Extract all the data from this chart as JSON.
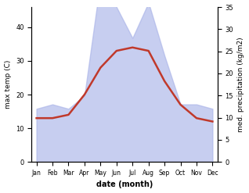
{
  "months": [
    "Jan",
    "Feb",
    "Mar",
    "Apr",
    "May",
    "Jun",
    "Jul",
    "Aug",
    "Sep",
    "Oct",
    "Nov",
    "Dec"
  ],
  "temperature": [
    13,
    13,
    14,
    20,
    28,
    33,
    34,
    33,
    24,
    17,
    13,
    12
  ],
  "precipitation": [
    12,
    13,
    12,
    15,
    41,
    35,
    28,
    36,
    24,
    13,
    13,
    12
  ],
  "temp_color": "#c0392b",
  "precip_color": "#aab4e8",
  "precip_alpha": 0.65,
  "xlabel": "date (month)",
  "ylabel_left": "max temp (C)",
  "ylabel_right": "med. precipitation (kg/m2)",
  "ylim_left": [
    0,
    46
  ],
  "ylim_right": [
    0,
    35
  ],
  "yticks_left": [
    0,
    10,
    20,
    30,
    40
  ],
  "yticks_right": [
    0,
    5,
    10,
    15,
    20,
    25,
    30,
    35
  ],
  "bg_color": "#ffffff",
  "precip_scale": 1.3143
}
